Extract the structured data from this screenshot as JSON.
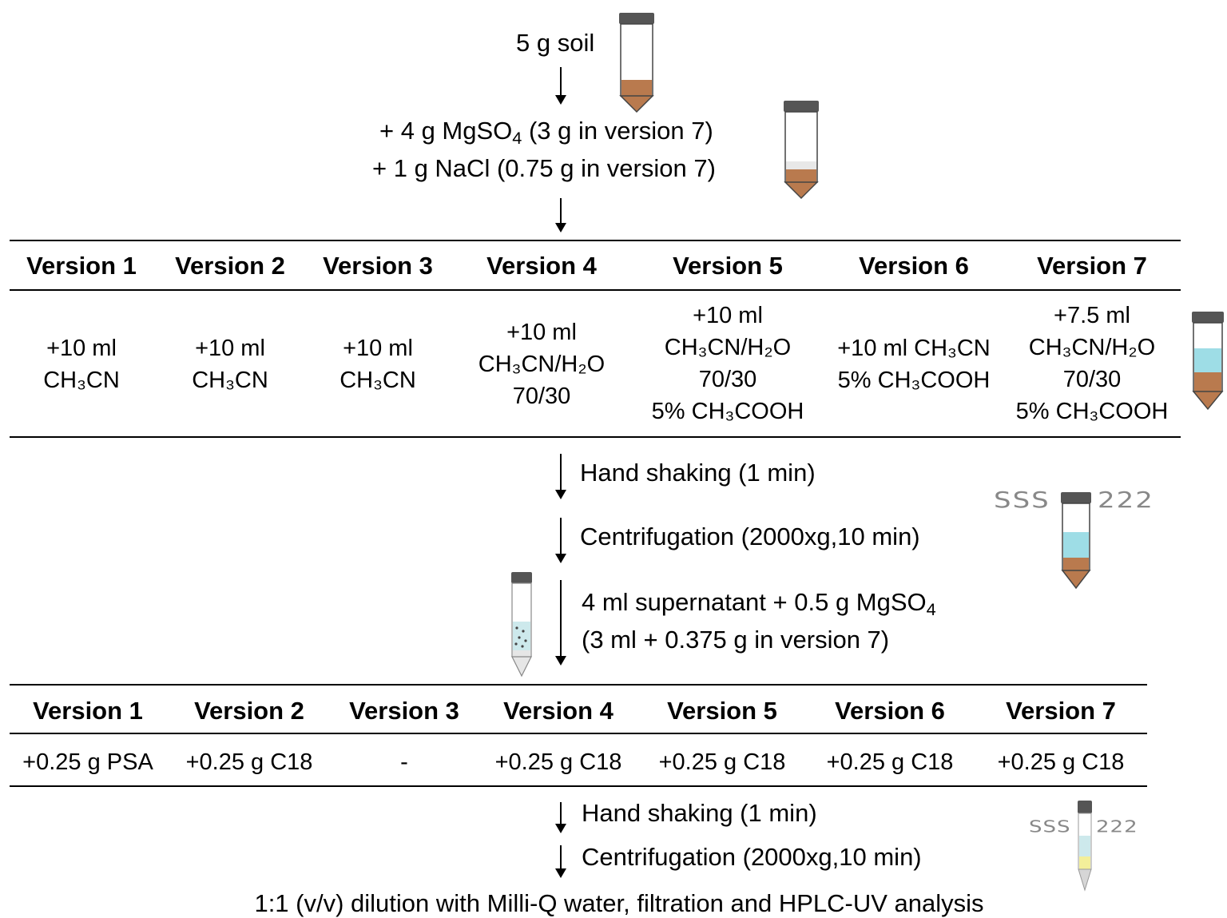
{
  "flow": {
    "step_soil": "5 g soil",
    "step_mgso4_a": "+ 4 g MgSO",
    "step_mgso4_sub": "4",
    "step_mgso4_b": " (3 g in version 7)",
    "step_nacl": "+ 1 g NaCl (0.75 g in version 7)",
    "step_hand_shaking": "Hand shaking (1 min)",
    "step_centrifugation": "Centrifugation (2000xg,10 min)",
    "step_supernatant_a": "4 ml supernatant + 0.5 g MgSO",
    "step_supernatant_sub": "4",
    "step_supernatant_2": "(3 ml + 0.375 g in version 7)",
    "step_hand_shaking_2": "Hand shaking (1 min)",
    "step_centrifugation_2": "Centrifugation (2000xg,10 min)",
    "step_final": "1:1 (v/v) dilution with Milli-Q water, filtration and HPLC-UV analysis"
  },
  "extraction_table": {
    "headers": [
      "Version 1",
      "Version 2",
      "Version 3",
      "Version 4",
      "Version 5",
      "Version 6",
      "Version 7"
    ],
    "cells": [
      [
        "+10 ml",
        "CH₃CN"
      ],
      [
        "+10 ml",
        "CH₃CN"
      ],
      [
        "+10 ml",
        "CH₃CN"
      ],
      [
        "+10 ml",
        "CH₃CN/H₂O",
        "70/30"
      ],
      [
        "+10 ml",
        "CH₃CN/H₂O",
        "70/30",
        "5% CH₃COOH"
      ],
      [
        "+10 ml CH₃CN",
        "5% CH₃COOH"
      ],
      [
        "+7.5 ml",
        "CH₃CN/H₂O",
        "70/30",
        "5% CH₃COOH"
      ]
    ]
  },
  "cleanup_table": {
    "headers": [
      "Version 1",
      "Version 2",
      "Version 3",
      "Version 4",
      "Version 5",
      "Version 6",
      "Version 7"
    ],
    "cells": [
      "+0.25 g PSA",
      "+0.25 g C18",
      "-",
      "+0.25 g C18",
      "+0.25 g C18",
      "+0.25 g C18",
      "+0.25 g C18"
    ]
  },
  "shake_marks": {
    "left": "SSS",
    "right": "222"
  },
  "colors": {
    "soil": "#b97a4e",
    "cap": "#555555",
    "liquid": "#9edde6",
    "salt": "#e8e8e8",
    "extract": "#f3ef9a"
  },
  "icons": [
    "tube-soil-icon",
    "tube-salt-icon",
    "tube-solvent-icon",
    "tube-shaking-icon",
    "tube-dspe-icon",
    "tube-final-icon"
  ]
}
